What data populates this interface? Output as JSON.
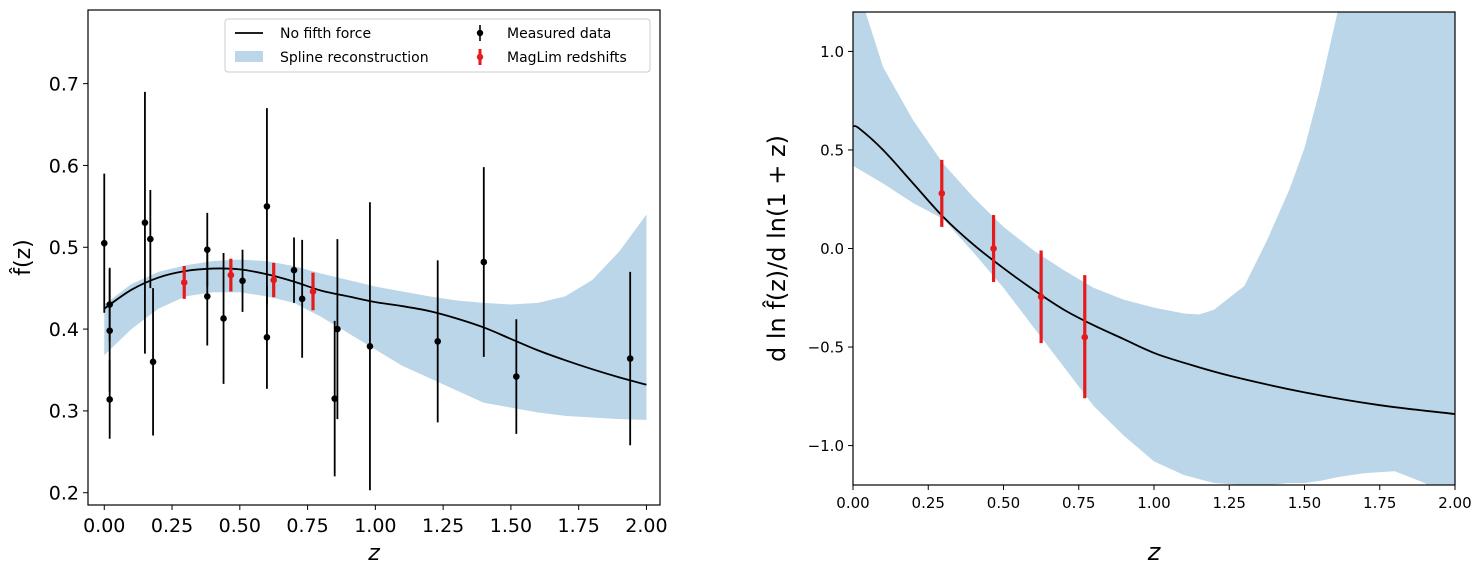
{
  "chart_data": [
    {
      "type": "scatter",
      "xlabel": "z",
      "ylabel": "f̂(z)",
      "xlim": [
        -0.06,
        2.05
      ],
      "ylim": [
        0.185,
        0.79
      ],
      "xticks": [
        "0.00",
        "0.25",
        "0.50",
        "0.75",
        "1.00",
        "1.25",
        "1.50",
        "1.75",
        "2.00"
      ],
      "yticks": [
        "0.2",
        "0.3",
        "0.4",
        "0.5",
        "0.6",
        "0.7"
      ],
      "grid": false,
      "legend_position": "top-center",
      "legend": {
        "line": "No fifth force",
        "band": "Spline reconstruction",
        "measured": "Measured data",
        "maglim": "MagLim redshifts"
      },
      "colors": {
        "line": "#000000",
        "band": "#bad6e8",
        "measured": "#000000",
        "maglim": "#e41a1c"
      },
      "line": {
        "x": [
          0,
          0.1,
          0.2,
          0.3,
          0.4,
          0.5,
          0.6,
          0.7,
          0.8,
          0.9,
          1.0,
          1.1,
          1.2,
          1.3,
          1.4,
          1.5,
          1.6,
          1.7,
          1.8,
          1.9,
          2.0
        ],
        "y": [
          0.425,
          0.448,
          0.463,
          0.471,
          0.474,
          0.473,
          0.467,
          0.458,
          0.447,
          0.44,
          0.433,
          0.428,
          0.422,
          0.413,
          0.402,
          0.388,
          0.374,
          0.362,
          0.351,
          0.341,
          0.332
        ]
      },
      "band": {
        "x": [
          0,
          0.1,
          0.2,
          0.3,
          0.4,
          0.5,
          0.6,
          0.7,
          0.8,
          0.9,
          1.0,
          1.1,
          1.2,
          1.3,
          1.4,
          1.5,
          1.6,
          1.7,
          1.8,
          1.9,
          2.0
        ],
        "upper": [
          0.43,
          0.455,
          0.47,
          0.478,
          0.483,
          0.485,
          0.483,
          0.477,
          0.468,
          0.46,
          0.452,
          0.446,
          0.44,
          0.435,
          0.432,
          0.43,
          0.432,
          0.44,
          0.46,
          0.495,
          0.54
        ],
        "lower": [
          0.368,
          0.4,
          0.425,
          0.44,
          0.445,
          0.445,
          0.44,
          0.432,
          0.415,
          0.395,
          0.375,
          0.355,
          0.34,
          0.325,
          0.31,
          0.304,
          0.298,
          0.294,
          0.292,
          0.29,
          0.289
        ]
      },
      "measured": [
        {
          "x": 0.0,
          "y": 0.505,
          "err": 0.085
        },
        {
          "x": 0.02,
          "y": 0.43,
          "err": 0.045
        },
        {
          "x": 0.02,
          "y": 0.398,
          "err": 0.075
        },
        {
          "x": 0.02,
          "y": 0.314,
          "err": 0.048
        },
        {
          "x": 0.15,
          "y": 0.53,
          "err": 0.16
        },
        {
          "x": 0.17,
          "y": 0.51,
          "err": 0.06
        },
        {
          "x": 0.18,
          "y": 0.36,
          "err": 0.09
        },
        {
          "x": 0.38,
          "y": 0.497,
          "err": 0.045
        },
        {
          "x": 0.38,
          "y": 0.44,
          "err": 0.06
        },
        {
          "x": 0.44,
          "y": 0.413,
          "err": 0.08
        },
        {
          "x": 0.51,
          "y": 0.459,
          "err": 0.038
        },
        {
          "x": 0.6,
          "y": 0.55,
          "err": 0.12
        },
        {
          "x": 0.6,
          "y": 0.39,
          "err": 0.063
        },
        {
          "x": 0.7,
          "y": 0.472,
          "err": 0.04
        },
        {
          "x": 0.73,
          "y": 0.437,
          "err": 0.072
        },
        {
          "x": 0.85,
          "y": 0.315,
          "err": 0.095
        },
        {
          "x": 0.86,
          "y": 0.4,
          "err": 0.11
        },
        {
          "x": 0.98,
          "y": 0.379,
          "err": 0.176
        },
        {
          "x": 1.23,
          "y": 0.385,
          "err": 0.099
        },
        {
          "x": 1.4,
          "y": 0.482,
          "err": 0.116
        },
        {
          "x": 1.52,
          "y": 0.342,
          "err": 0.07
        },
        {
          "x": 1.94,
          "y": 0.364,
          "err": 0.106
        }
      ],
      "maglim": [
        {
          "x": 0.295,
          "y": 0.457,
          "err": 0.02
        },
        {
          "x": 0.467,
          "y": 0.466,
          "err": 0.02
        },
        {
          "x": 0.625,
          "y": 0.46,
          "err": 0.021
        },
        {
          "x": 0.77,
          "y": 0.446,
          "err": 0.023
        }
      ]
    },
    {
      "type": "line",
      "xlabel": "z",
      "ylabel": "d ln f̂(z)/d ln(1 + z)",
      "xlim": [
        0,
        2.0
      ],
      "ylim": [
        -1.2,
        1.2
      ],
      "xticks": [
        "0.00",
        "0.25",
        "0.50",
        "0.75",
        "1.00",
        "1.25",
        "1.50",
        "1.75",
        "2.00"
      ],
      "yticks": [
        "−1.0",
        "−0.5",
        "0.0",
        "0.5",
        "1.0"
      ],
      "grid": false,
      "colors": {
        "line": "#000000",
        "band": "#bad6e8",
        "maglim": "#e41a1c"
      },
      "line": {
        "x": [
          0,
          0.02,
          0.1,
          0.2,
          0.3,
          0.4,
          0.5,
          0.6,
          0.7,
          0.8,
          0.9,
          1.0,
          1.1,
          1.25,
          1.5,
          1.75,
          2.0
        ],
        "y": [
          0.62,
          0.61,
          0.5,
          0.33,
          0.16,
          0.02,
          -0.1,
          -0.21,
          -0.31,
          -0.39,
          -0.46,
          -0.53,
          -0.58,
          -0.645,
          -0.73,
          -0.795,
          -0.84
        ]
      },
      "band": {
        "x": [
          0,
          0.1,
          0.2,
          0.3,
          0.4,
          0.5,
          0.6,
          0.7,
          0.8,
          0.9,
          1.0,
          1.1,
          1.15,
          1.2,
          1.3,
          1.375,
          1.45,
          1.5,
          1.55,
          1.61,
          1.7,
          1.8,
          1.9,
          2.0
        ],
        "upper": [
          1.4,
          0.92,
          0.65,
          0.43,
          0.26,
          0.11,
          -0.01,
          -0.11,
          -0.2,
          -0.26,
          -0.3,
          -0.33,
          -0.335,
          -0.31,
          -0.19,
          0.04,
          0.3,
          0.51,
          0.8,
          1.2,
          1.4,
          1.4,
          1.4,
          1.4
        ],
        "lower": [
          0.42,
          0.33,
          0.23,
          0.15,
          -0.02,
          -0.2,
          -0.4,
          -0.6,
          -0.8,
          -0.95,
          -1.08,
          -1.15,
          -1.17,
          -1.19,
          -1.2,
          -1.2,
          -1.19,
          -1.19,
          -1.18,
          -1.16,
          -1.14,
          -1.13,
          -1.19,
          -1.35
        ]
      },
      "maglim": [
        {
          "x": 0.295,
          "y": 0.28,
          "lo": 0.11,
          "hi": 0.45
        },
        {
          "x": 0.467,
          "y": 0.0,
          "lo": -0.17,
          "hi": 0.17
        },
        {
          "x": 0.625,
          "y": -0.245,
          "lo": -0.48,
          "hi": -0.01
        },
        {
          "x": 0.77,
          "y": -0.45,
          "lo": -0.76,
          "hi": -0.135
        }
      ]
    }
  ]
}
